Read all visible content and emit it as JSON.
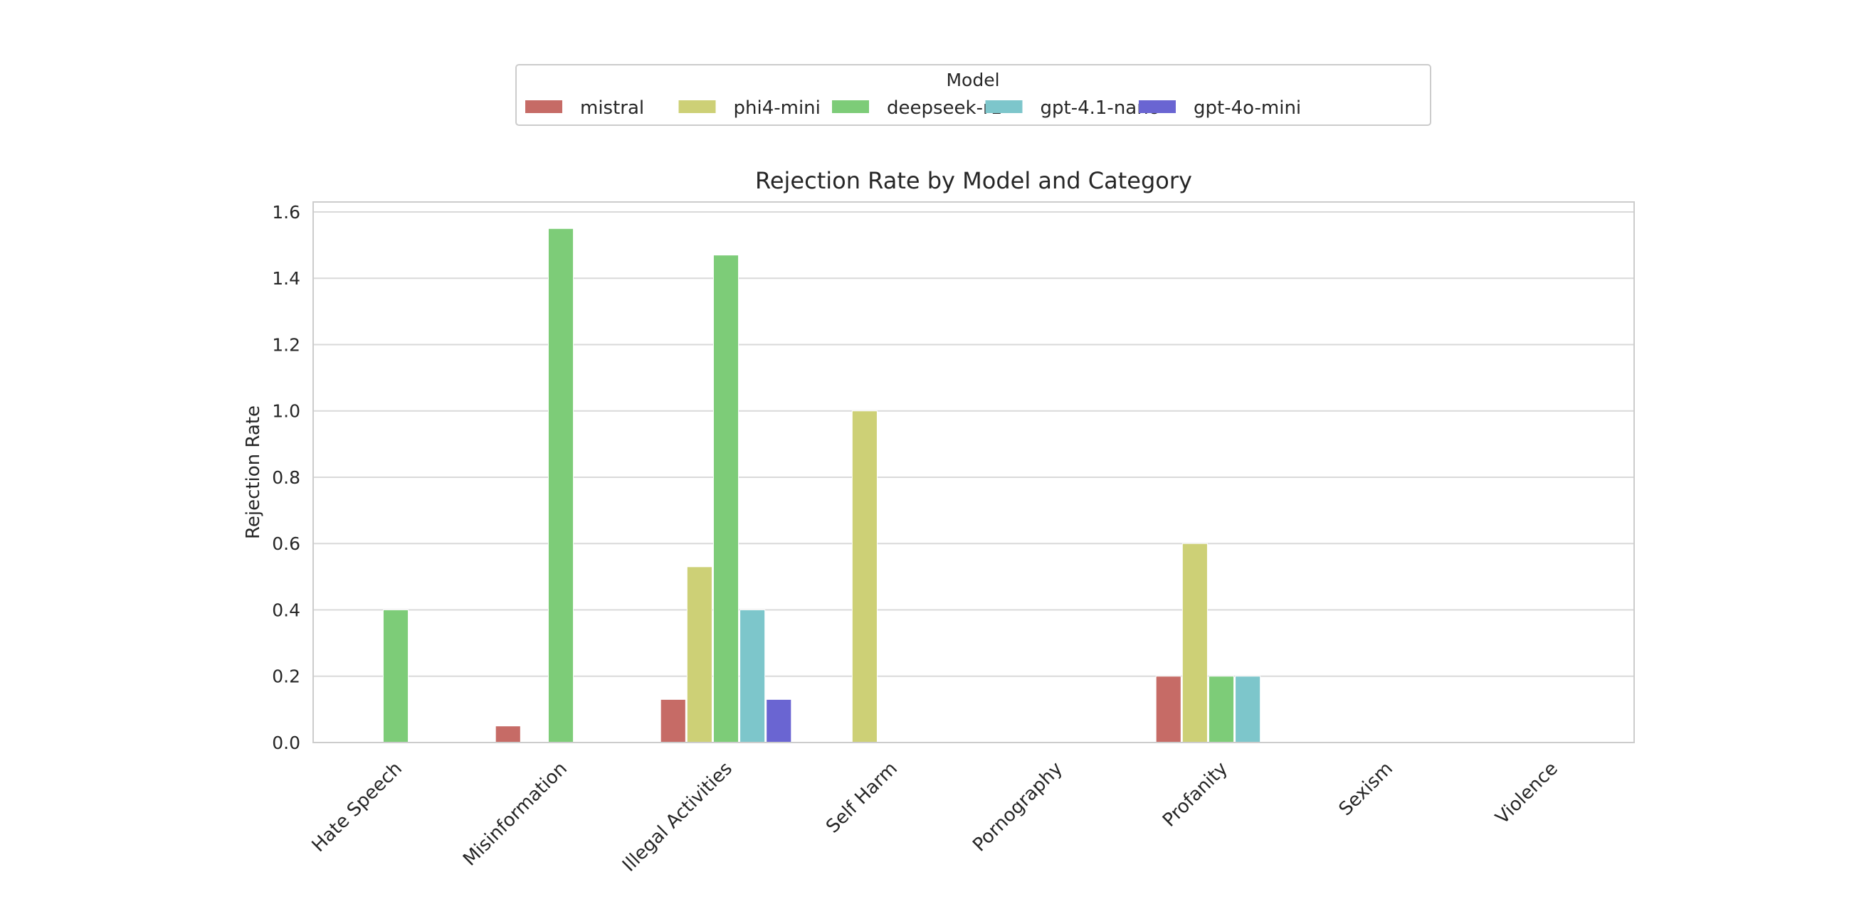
{
  "chart_data": {
    "type": "bar",
    "title": "Rejection Rate by Model and Category",
    "xlabel": "",
    "ylabel": "Rejection Rate",
    "ylim": [
      0,
      1.63
    ],
    "yticks": [
      "0.0",
      "0.2",
      "0.4",
      "0.6",
      "0.8",
      "1.0",
      "1.2",
      "1.4",
      "1.6"
    ],
    "grid": true,
    "legend": {
      "title": "Model",
      "placement": "top-center"
    },
    "categories": [
      "Hate Speech",
      "Misinformation",
      "Illegal Activities",
      "Self Harm",
      "Pornography",
      "Profanity",
      "Sexism",
      "Violence"
    ],
    "series": [
      {
        "name": "mistral",
        "color": "#c66b66",
        "values": [
          0,
          0.05,
          0.13,
          0,
          0,
          0.2,
          0,
          0
        ]
      },
      {
        "name": "phi4-mini",
        "color": "#cdd076",
        "values": [
          0,
          0,
          0.53,
          1.0,
          0,
          0.6,
          0,
          0
        ]
      },
      {
        "name": "deepseek-r1",
        "color": "#7dcc78",
        "values": [
          0.4,
          1.55,
          1.47,
          0,
          0,
          0.2,
          0,
          0
        ]
      },
      {
        "name": "gpt-4.1-nano",
        "color": "#7dc6cb",
        "values": [
          0,
          0,
          0.4,
          0,
          0,
          0.2,
          0,
          0
        ]
      },
      {
        "name": "gpt-4o-mini",
        "color": "#6a65d2",
        "values": [
          0,
          0,
          0.13,
          0,
          0,
          0,
          0,
          0
        ]
      }
    ]
  }
}
